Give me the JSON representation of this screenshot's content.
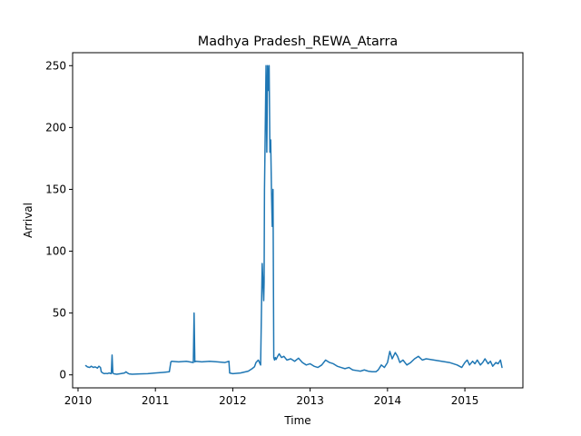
{
  "chart_data": {
    "type": "line",
    "title": "Madhya Pradesh_REWA_Atarra",
    "xlabel": "Time",
    "ylabel": "Arrival",
    "xlim": [
      2009.93,
      2015.75
    ],
    "ylim": [
      -10.5,
      260.5
    ],
    "grid": false,
    "x_ticks": [
      2010,
      2011,
      2012,
      2013,
      2014,
      2015
    ],
    "y_ticks": [
      0,
      50,
      100,
      150,
      200,
      250
    ],
    "color": "#1f77b4",
    "series": [
      {
        "x": [
          2010.1,
          2010.12,
          2010.15,
          2010.17,
          2010.2,
          2010.22,
          2010.25,
          2010.27,
          2010.29,
          2010.3,
          2010.32,
          2010.34,
          2010.36,
          2010.38,
          2010.4,
          2010.43,
          2010.44,
          2010.45,
          2010.46,
          2010.47,
          2010.5,
          2010.55,
          2010.6,
          2010.62,
          2010.64,
          2010.66,
          2010.7,
          2010.8,
          2010.9,
          2011.0,
          2011.1,
          2011.18,
          2011.2,
          2011.21,
          2011.3,
          2011.4,
          2011.49,
          2011.5,
          2011.51,
          2011.52,
          2011.6,
          2011.7,
          2011.8,
          2011.9,
          2011.95,
          2011.96,
          2012.0,
          2012.1,
          2012.2,
          2012.25,
          2012.28,
          2012.3,
          2012.33,
          2012.36,
          2012.38,
          2012.4,
          2012.405,
          2012.41,
          2012.42,
          2012.43,
          2012.44,
          2012.45,
          2012.46,
          2012.47,
          2012.48,
          2012.49,
          2012.5,
          2012.51,
          2012.52,
          2012.53,
          2012.54,
          2012.55,
          2012.56,
          2012.58,
          2012.6,
          2012.63,
          2012.66,
          2012.7,
          2012.75,
          2012.8,
          2012.85,
          2012.9,
          2012.95,
          2013.0,
          2013.05,
          2013.1,
          2013.15,
          2013.2,
          2013.25,
          2013.3,
          2013.35,
          2013.4,
          2013.45,
          2013.5,
          2013.55,
          2013.6,
          2013.65,
          2013.7,
          2013.75,
          2013.8,
          2013.85,
          2013.88,
          2013.92,
          2013.96,
          2014.0,
          2014.03,
          2014.06,
          2014.1,
          2014.13,
          2014.16,
          2014.2,
          2014.25,
          2014.3,
          2014.35,
          2014.4,
          2014.45,
          2014.5,
          2014.6,
          2014.7,
          2014.8,
          2014.85,
          2014.9,
          2014.93,
          2014.96,
          2015.0,
          2015.03,
          2015.06,
          2015.1,
          2015.13,
          2015.16,
          2015.2,
          2015.23,
          2015.26,
          2015.3,
          2015.33,
          2015.36,
          2015.4,
          2015.43,
          2015.46,
          2015.48
        ],
        "values": [
          7.5,
          6.5,
          6.0,
          7.0,
          6.0,
          6.5,
          5.5,
          7.0,
          6.0,
          2.5,
          1.5,
          1.0,
          1.2,
          1.0,
          1.5,
          1.0,
          16.0,
          1.5,
          1.0,
          0.8,
          0.5,
          1.0,
          1.5,
          2.5,
          1.5,
          0.8,
          0.5,
          0.8,
          1.0,
          1.5,
          2.0,
          2.5,
          10.5,
          11.0,
          10.5,
          11.0,
          10.0,
          50.0,
          10.5,
          11.0,
          10.5,
          11.0,
          10.5,
          10.0,
          11.0,
          1.5,
          1.0,
          1.5,
          3.0,
          5.0,
          6.5,
          10.0,
          12.0,
          8.0,
          90.0,
          60.0,
          75.0,
          150.0,
          200.0,
          250.0,
          180.0,
          250.0,
          230.0,
          250.0,
          180.0,
          190.0,
          150.0,
          120.0,
          150.0,
          14.0,
          12.0,
          14.0,
          12.5,
          15.0,
          17.0,
          14.0,
          15.0,
          12.0,
          13.0,
          11.0,
          13.5,
          10.0,
          8.0,
          9.0,
          7.0,
          6.0,
          8.0,
          12.0,
          10.0,
          9.0,
          7.0,
          6.0,
          5.0,
          6.0,
          4.0,
          3.5,
          3.0,
          4.0,
          3.0,
          2.5,
          2.5,
          4.0,
          8.0,
          6.0,
          10.0,
          19.0,
          13.0,
          18.0,
          15.0,
          10.0,
          12.0,
          8.0,
          10.0,
          13.0,
          15.0,
          12.0,
          13.0,
          12.0,
          11.0,
          10.0,
          9.0,
          8.0,
          7.0,
          6.0,
          10.0,
          12.0,
          8.0,
          11.0,
          9.0,
          12.0,
          8.0,
          10.0,
          13.0,
          9.0,
          11.0,
          7.0,
          10.0,
          9.0,
          12.0,
          6.0
        ]
      }
    ]
  }
}
